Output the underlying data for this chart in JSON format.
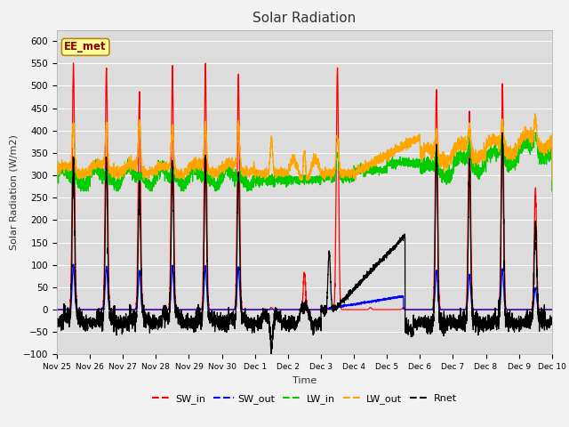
{
  "title": "Solar Radiation",
  "ylabel": "Solar Radiation (W/m2)",
  "xlabel": "Time",
  "annotation": "EE_met",
  "ylim": [
    -100,
    625
  ],
  "yticks": [
    -100,
    -50,
    0,
    50,
    100,
    150,
    200,
    250,
    300,
    350,
    400,
    450,
    500,
    550,
    600
  ],
  "colors": {
    "SW_in": "#FF0000",
    "SW_out": "#0000FF",
    "LW_in": "#00CC00",
    "LW_out": "#FFA500",
    "Rnet": "#000000"
  },
  "bg_color": "#E8E8E8",
  "plot_bg": "#DCDCDC",
  "date_labels": [
    "Nov 25",
    "Nov 26",
    "Nov 27",
    "Nov 28",
    "Nov 29",
    "Nov 30",
    "Dec 1",
    "Dec 2",
    "Dec 3",
    "Dec 4",
    "Dec 5",
    "Dec 6",
    "Dec 7",
    "Dec 8",
    "Dec 9",
    "Dec 10"
  ]
}
